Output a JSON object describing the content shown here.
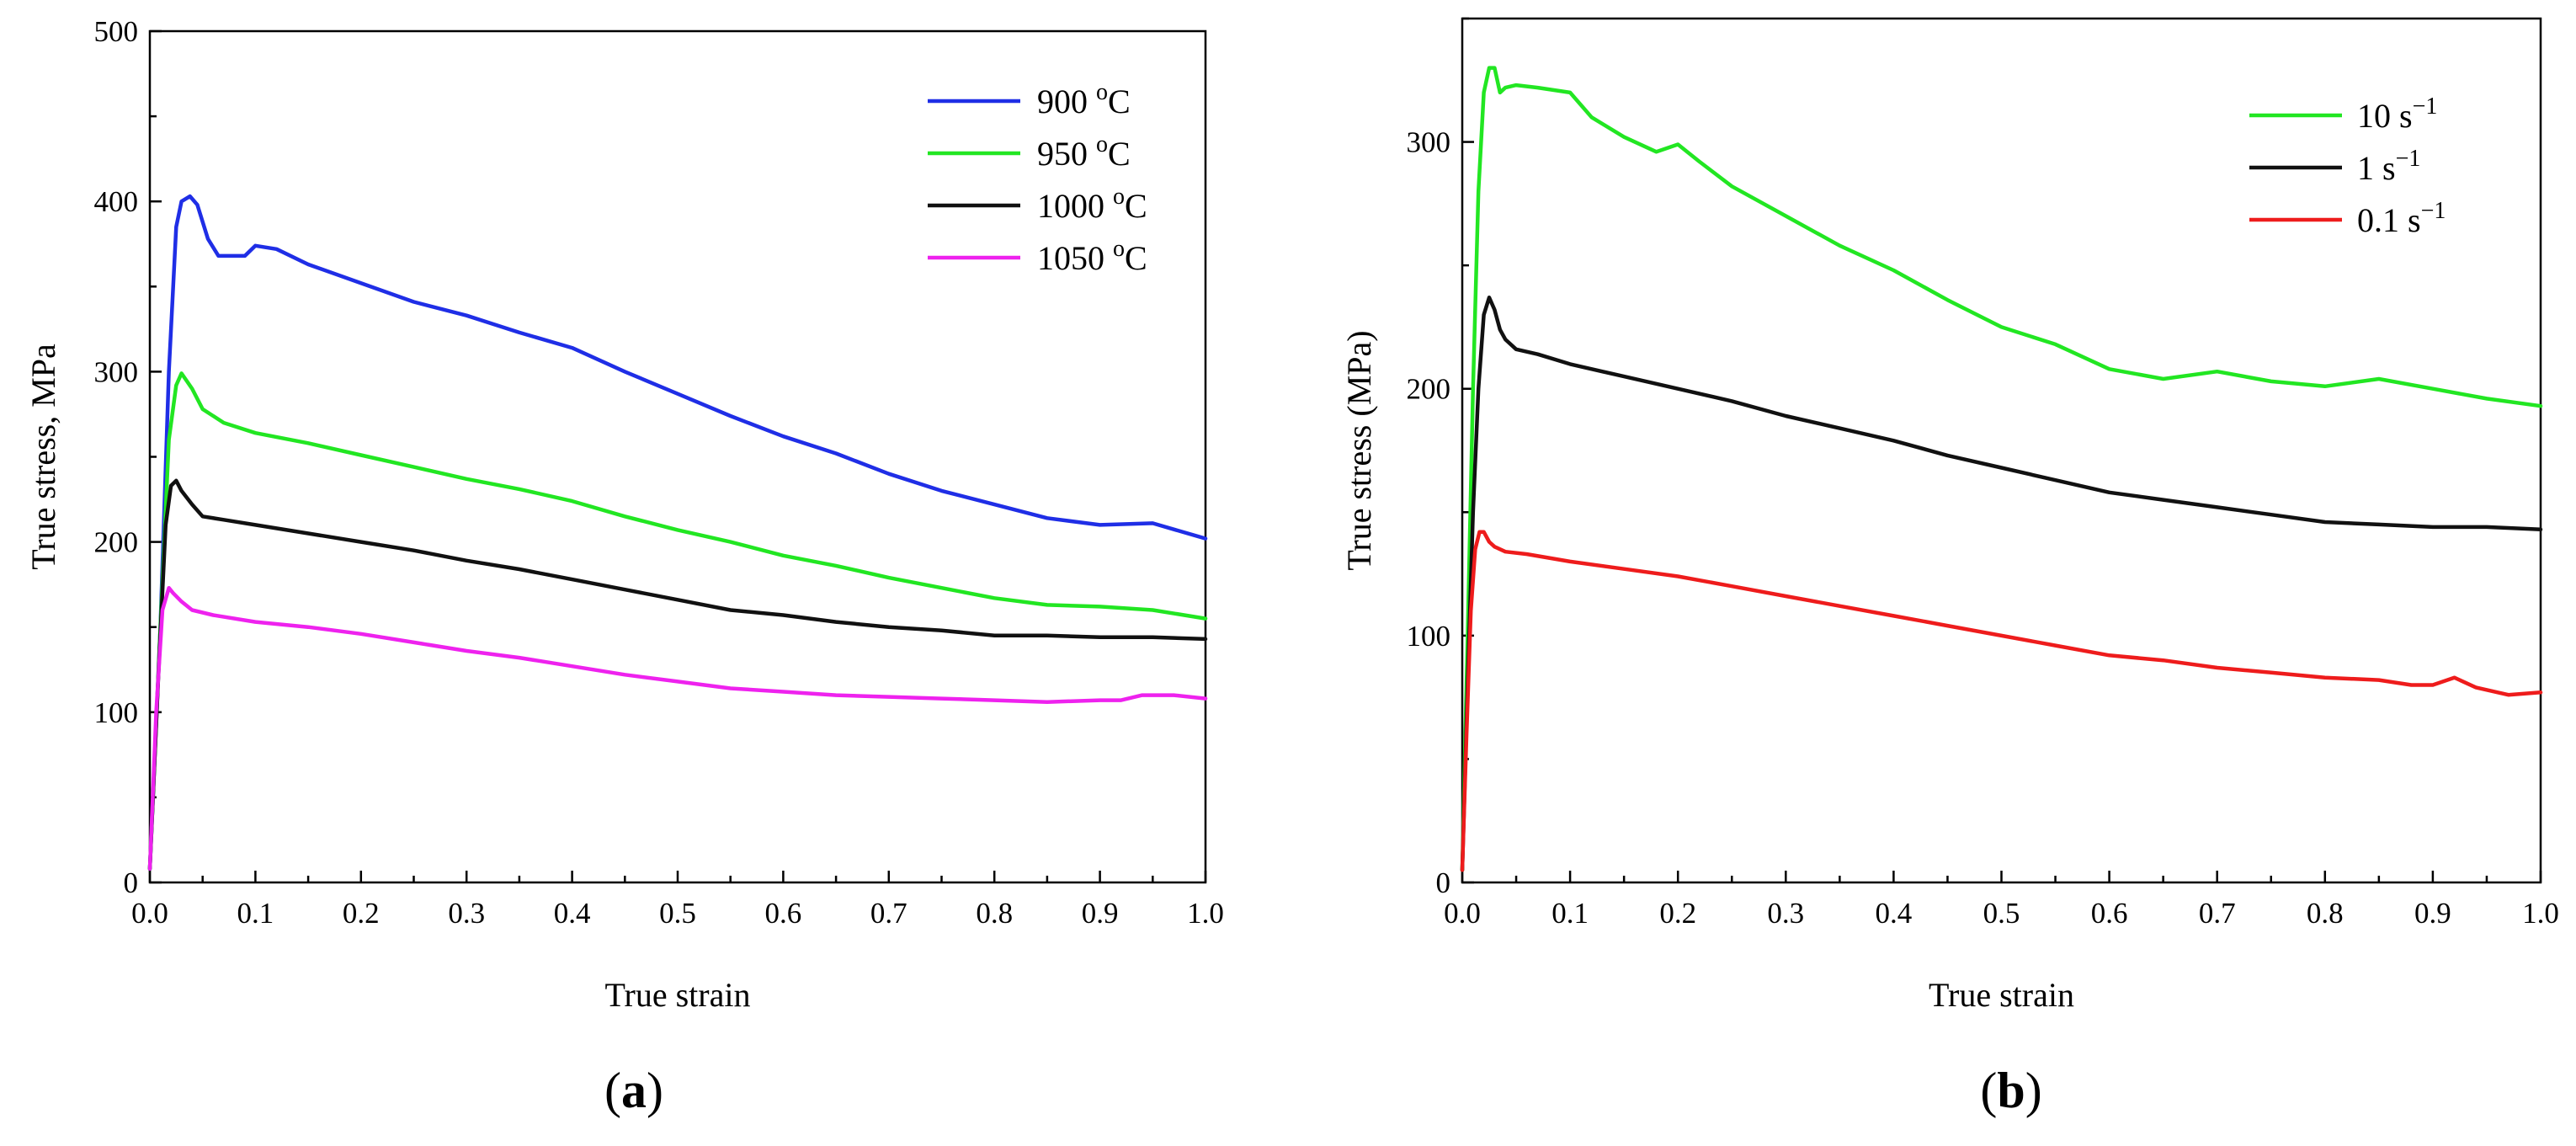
{
  "chart_data": [
    {
      "panel_label": "a",
      "type": "line",
      "xlabel": "True strain",
      "ylabel": "True stress, MPa",
      "xlim": [
        0.0,
        1.0
      ],
      "ylim": [
        0,
        500
      ],
      "xticks": [
        "0.0",
        "0.1",
        "0.2",
        "0.3",
        "0.4",
        "0.5",
        "0.6",
        "0.7",
        "0.8",
        "0.9",
        "1.0"
      ],
      "yticks": [
        "0",
        "100",
        "200",
        "300",
        "400",
        "500"
      ],
      "legend_position": "top-right",
      "series": [
        {
          "name": "900 °C",
          "legend_main": "900 ",
          "legend_sup": "o",
          "legend_post": "C",
          "color": "#1f2ee6",
          "x": [
            0,
            0.01,
            0.018,
            0.025,
            0.03,
            0.038,
            0.045,
            0.055,
            0.065,
            0.075,
            0.09,
            0.1,
            0.12,
            0.15,
            0.2,
            0.25,
            0.3,
            0.35,
            0.4,
            0.45,
            0.5,
            0.55,
            0.6,
            0.65,
            0.7,
            0.75,
            0.8,
            0.85,
            0.9,
            0.95,
            1.0
          ],
          "y": [
            8,
            150,
            300,
            385,
            400,
            403,
            398,
            378,
            368,
            368,
            368,
            374,
            372,
            363,
            352,
            341,
            333,
            323,
            314,
            300,
            287,
            274,
            262,
            252,
            240,
            230,
            222,
            214,
            210,
            211,
            202
          ]
        },
        {
          "name": "950 °C",
          "legend_main": "950 ",
          "legend_sup": "o",
          "legend_post": "C",
          "color": "#22e622",
          "x": [
            0,
            0.01,
            0.018,
            0.025,
            0.03,
            0.04,
            0.05,
            0.07,
            0.1,
            0.15,
            0.2,
            0.25,
            0.3,
            0.35,
            0.4,
            0.45,
            0.5,
            0.55,
            0.6,
            0.65,
            0.7,
            0.75,
            0.8,
            0.85,
            0.9,
            0.95,
            1.0
          ],
          "y": [
            8,
            150,
            260,
            292,
            299,
            290,
            278,
            270,
            264,
            258,
            251,
            244,
            237,
            231,
            224,
            215,
            207,
            200,
            192,
            186,
            179,
            173,
            167,
            163,
            162,
            160,
            155
          ]
        },
        {
          "name": "1000 °C",
          "legend_main": "1000 ",
          "legend_sup": "o",
          "legend_post": "C",
          "color": "#111111",
          "x": [
            0,
            0.008,
            0.015,
            0.02,
            0.025,
            0.03,
            0.04,
            0.05,
            0.07,
            0.1,
            0.15,
            0.2,
            0.25,
            0.3,
            0.35,
            0.4,
            0.45,
            0.5,
            0.55,
            0.6,
            0.65,
            0.7,
            0.75,
            0.8,
            0.85,
            0.9,
            0.95,
            1.0
          ],
          "y": [
            8,
            120,
            210,
            233,
            236,
            230,
            222,
            215,
            213,
            210,
            205,
            200,
            195,
            189,
            184,
            178,
            172,
            166,
            160,
            157,
            153,
            150,
            148,
            145,
            145,
            144,
            144,
            143
          ]
        },
        {
          "name": "1050 °C",
          "legend_main": "1050 ",
          "legend_sup": "o",
          "legend_post": "C",
          "color": "#ee22ee",
          "x": [
            0,
            0.006,
            0.012,
            0.018,
            0.022,
            0.03,
            0.04,
            0.06,
            0.1,
            0.15,
            0.2,
            0.25,
            0.3,
            0.35,
            0.4,
            0.45,
            0.5,
            0.55,
            0.6,
            0.65,
            0.7,
            0.75,
            0.8,
            0.85,
            0.9,
            0.92,
            0.94,
            0.97,
            1.0
          ],
          "y": [
            8,
            100,
            160,
            173,
            170,
            165,
            160,
            157,
            153,
            150,
            146,
            141,
            136,
            132,
            127,
            122,
            118,
            114,
            112,
            110,
            109,
            108,
            107,
            106,
            107,
            107,
            110,
            110,
            108
          ]
        }
      ]
    },
    {
      "panel_label": "b",
      "type": "line",
      "xlabel": "True strain",
      "ylabel": "True stress (MPa)",
      "xlim": [
        0.0,
        1.0
      ],
      "ylim": [
        0,
        350
      ],
      "xticks": [
        "0.0",
        "0.1",
        "0.2",
        "0.3",
        "0.4",
        "0.5",
        "0.6",
        "0.7",
        "0.8",
        "0.9",
        "1.0"
      ],
      "yticks": [
        "0",
        "100",
        "200",
        "300"
      ],
      "legend_position": "top-right",
      "series": [
        {
          "name": "10 s⁻¹",
          "legend_main": "10 s",
          "legend_sup": "−1",
          "legend_post": "",
          "color": "#22e622",
          "x": [
            0,
            0.005,
            0.01,
            0.015,
            0.02,
            0.025,
            0.03,
            0.035,
            0.04,
            0.05,
            0.07,
            0.1,
            0.12,
            0.15,
            0.18,
            0.2,
            0.22,
            0.25,
            0.3,
            0.35,
            0.4,
            0.45,
            0.5,
            0.55,
            0.6,
            0.65,
            0.7,
            0.75,
            0.8,
            0.85,
            0.9,
            0.95,
            1.0
          ],
          "y": [
            5,
            100,
            200,
            280,
            320,
            330,
            330,
            320,
            322,
            323,
            322,
            320,
            310,
            302,
            296,
            299,
            292,
            282,
            270,
            258,
            248,
            236,
            225,
            218,
            208,
            204,
            207,
            203,
            201,
            204,
            200,
            196,
            193
          ]
        },
        {
          "name": "1 s⁻¹",
          "legend_main": "1 s",
          "legend_sup": "−1",
          "legend_post": "",
          "color": "#111111",
          "x": [
            0,
            0.005,
            0.01,
            0.015,
            0.02,
            0.025,
            0.03,
            0.035,
            0.04,
            0.05,
            0.07,
            0.1,
            0.15,
            0.2,
            0.25,
            0.3,
            0.35,
            0.4,
            0.45,
            0.5,
            0.55,
            0.6,
            0.65,
            0.7,
            0.75,
            0.8,
            0.85,
            0.9,
            0.95,
            1.0
          ],
          "y": [
            5,
            80,
            150,
            200,
            230,
            237,
            232,
            224,
            220,
            216,
            214,
            210,
            205,
            200,
            195,
            189,
            184,
            179,
            173,
            168,
            163,
            158,
            155,
            152,
            149,
            146,
            145,
            144,
            144,
            143
          ]
        },
        {
          "name": "0.1 s⁻¹",
          "legend_main": "0.1 s",
          "legend_sup": "−1",
          "legend_post": "",
          "color": "#ee1c1c",
          "x": [
            0,
            0.004,
            0.008,
            0.012,
            0.016,
            0.02,
            0.025,
            0.03,
            0.04,
            0.06,
            0.1,
            0.15,
            0.2,
            0.25,
            0.3,
            0.35,
            0.4,
            0.45,
            0.5,
            0.55,
            0.6,
            0.65,
            0.7,
            0.75,
            0.8,
            0.85,
            0.88,
            0.9,
            0.92,
            0.94,
            0.97,
            1.0
          ],
          "y": [
            5,
            60,
            110,
            135,
            142,
            142,
            138,
            136,
            134,
            133,
            130,
            127,
            124,
            120,
            116,
            112,
            108,
            104,
            100,
            96,
            92,
            90,
            87,
            85,
            83,
            82,
            80,
            80,
            83,
            79,
            76,
            77
          ]
        }
      ]
    }
  ]
}
